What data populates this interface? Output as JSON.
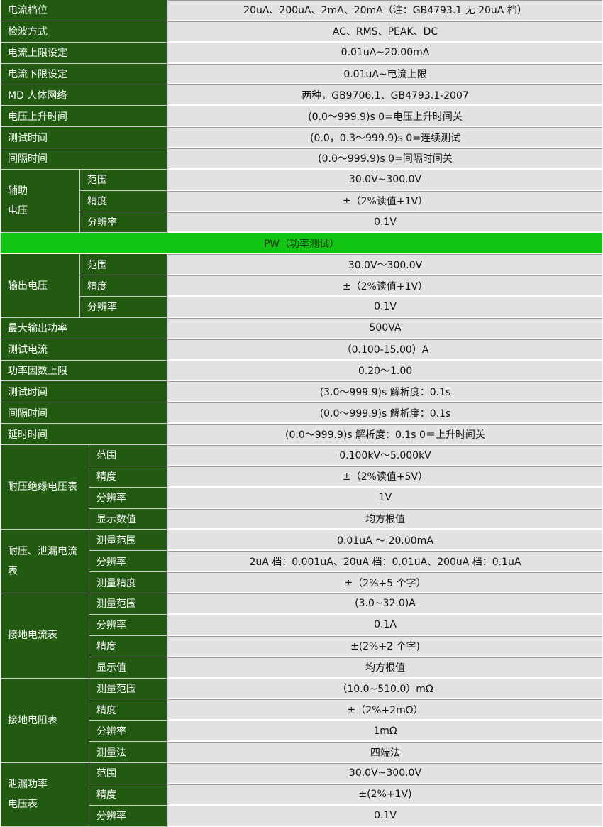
{
  "colors": {
    "label_bg": "#235a12",
    "value_bg": "#e2e2e2",
    "section_header_bg": "#13c513"
  },
  "sections": [
    {
      "type": "single",
      "label": "电流档位",
      "value": "20uA、200uA、2mA、20mA（注：GB4793.1 无 20uA 档）"
    },
    {
      "type": "single",
      "label": "检波方式",
      "value": "AC、RMS、PEAK、DC"
    },
    {
      "type": "single",
      "label": "电流上限设定",
      "value": "0.01uA~20.00mA"
    },
    {
      "type": "single",
      "label": "电流下限设定",
      "value": "0.01uA~电流上限"
    },
    {
      "type": "single",
      "label": "MD 人体网络",
      "value": "两种，GB9706.1、GB4793.1-2007"
    },
    {
      "type": "single",
      "label": "电压上升时间",
      "value": "(0.0～999.9)s   0=电压上升时间关"
    },
    {
      "type": "single",
      "label": "测试时间",
      "value": "(0.0，0.3～999.9)s   0=连续测试"
    },
    {
      "type": "single",
      "label": "间隔时间",
      "value": "(0.0～999.9)s   0=间隔时间关"
    },
    {
      "type": "group",
      "label": "辅助\n电压",
      "items": [
        {
          "label": "范围",
          "value": "30.0V~300.0V"
        },
        {
          "label": "精度",
          "value": "±（2%读值+1V）"
        },
        {
          "label": "分辨率",
          "value": "0.1V"
        }
      ]
    },
    {
      "type": "header",
      "label": "PW（功率测试）"
    },
    {
      "type": "group",
      "label": "输出电压",
      "items": [
        {
          "label": "范围",
          "value": "30.0V～300.0V"
        },
        {
          "label": "精度",
          "value": "±（2%读值+1V）"
        },
        {
          "label": "分辨率",
          "value": "0.1V"
        }
      ]
    },
    {
      "type": "single",
      "label": "最大输出功率",
      "value": "500VA"
    },
    {
      "type": "single",
      "label": "测试电流",
      "value": "（0.100-15.00）A"
    },
    {
      "type": "single",
      "label": "功率因数上限",
      "value": "0.20～1.00"
    },
    {
      "type": "single",
      "label": "测试时间",
      "value": "(3.0～999.9)s  解析度：0.1s"
    },
    {
      "type": "single",
      "label": "间隔时间",
      "value": "(0.0～999.9)s  解析度：0.1s"
    },
    {
      "type": "single",
      "label": "延时时间",
      "value": "(0.0～999.9)s  解析度：0.1s 0＝上升时间关"
    },
    {
      "type": "group",
      "label": "耐压绝缘电压表",
      "items": [
        {
          "label": "范围",
          "value": "0.100kV～5.000kV"
        },
        {
          "label": "精度",
          "value": "±（2%读值+5V）"
        },
        {
          "label": "分辨率",
          "value": "1V"
        },
        {
          "label": "显示数值",
          "value": "均方根值"
        }
      ]
    },
    {
      "type": "group",
      "label": "耐压、泄漏电流表",
      "items": [
        {
          "label": "测量范围",
          "value": "0.01uA  ～  20.00mA"
        },
        {
          "label": "分辨率",
          "value": "2uA 档：0.001uA、20uA 档：0.01uA、200uA 档：0.1uA"
        },
        {
          "label": "测量精度",
          "value": "±（2%+5 个字）"
        }
      ]
    },
    {
      "type": "group",
      "label": "接地电流表",
      "items": [
        {
          "label": "测量范围",
          "value": "(3.0~32.0)A"
        },
        {
          "label": "分辨率",
          "value": "0.1A"
        },
        {
          "label": "精度",
          "value": "±(2%+2 个字)"
        },
        {
          "label": "显示值",
          "value": "均方根值"
        }
      ]
    },
    {
      "type": "group",
      "label": "接地电阻表",
      "items": [
        {
          "label": "测量范围",
          "value": "（10.0~510.0）mΩ"
        },
        {
          "label": "精度",
          "value": "±（2%+2mΩ）"
        },
        {
          "label": "分辨率",
          "value": "1mΩ"
        },
        {
          "label": "测量法",
          "value": "四端法"
        }
      ]
    },
    {
      "type": "group",
      "label": "泄漏功率\n电压表",
      "items": [
        {
          "label": "范围",
          "value": "30.0V~300.0V"
        },
        {
          "label": "精度",
          "value": "±(2%+1V)"
        },
        {
          "label": "分辨率",
          "value": "0.1V"
        }
      ]
    }
  ]
}
